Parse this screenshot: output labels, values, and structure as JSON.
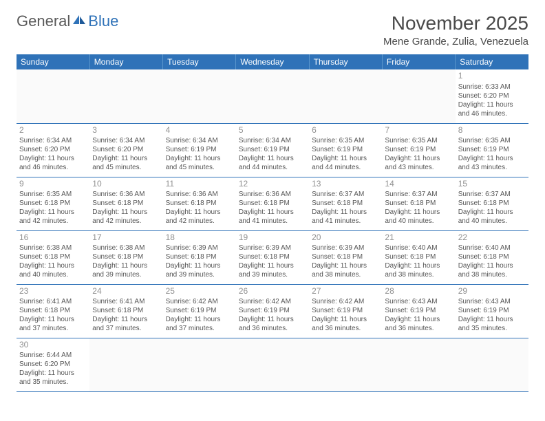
{
  "logo": {
    "general": "General",
    "blue": "Blue"
  },
  "header": {
    "title": "November 2025",
    "location": "Mene Grande, Zulia, Venezuela"
  },
  "columns": [
    "Sunday",
    "Monday",
    "Tuesday",
    "Wednesday",
    "Thursday",
    "Friday",
    "Saturday"
  ],
  "style": {
    "accent_color": "#2f72b8",
    "header_text_color": "#ffffff",
    "cell_border_color": "#2f72b8",
    "cell_top_border": "#cccccc",
    "text_color": "#555555",
    "daynum_color": "#909090",
    "background": "#ffffff",
    "font_family": "Arial"
  },
  "weeks": [
    [
      null,
      null,
      null,
      null,
      null,
      null,
      {
        "n": "1",
        "sunrise": "Sunrise: 6:33 AM",
        "sunset": "Sunset: 6:20 PM",
        "day1": "Daylight: 11 hours",
        "day2": "and 46 minutes."
      }
    ],
    [
      {
        "n": "2",
        "sunrise": "Sunrise: 6:34 AM",
        "sunset": "Sunset: 6:20 PM",
        "day1": "Daylight: 11 hours",
        "day2": "and 46 minutes."
      },
      {
        "n": "3",
        "sunrise": "Sunrise: 6:34 AM",
        "sunset": "Sunset: 6:20 PM",
        "day1": "Daylight: 11 hours",
        "day2": "and 45 minutes."
      },
      {
        "n": "4",
        "sunrise": "Sunrise: 6:34 AM",
        "sunset": "Sunset: 6:19 PM",
        "day1": "Daylight: 11 hours",
        "day2": "and 45 minutes."
      },
      {
        "n": "5",
        "sunrise": "Sunrise: 6:34 AM",
        "sunset": "Sunset: 6:19 PM",
        "day1": "Daylight: 11 hours",
        "day2": "and 44 minutes."
      },
      {
        "n": "6",
        "sunrise": "Sunrise: 6:35 AM",
        "sunset": "Sunset: 6:19 PM",
        "day1": "Daylight: 11 hours",
        "day2": "and 44 minutes."
      },
      {
        "n": "7",
        "sunrise": "Sunrise: 6:35 AM",
        "sunset": "Sunset: 6:19 PM",
        "day1": "Daylight: 11 hours",
        "day2": "and 43 minutes."
      },
      {
        "n": "8",
        "sunrise": "Sunrise: 6:35 AM",
        "sunset": "Sunset: 6:19 PM",
        "day1": "Daylight: 11 hours",
        "day2": "and 43 minutes."
      }
    ],
    [
      {
        "n": "9",
        "sunrise": "Sunrise: 6:35 AM",
        "sunset": "Sunset: 6:18 PM",
        "day1": "Daylight: 11 hours",
        "day2": "and 42 minutes."
      },
      {
        "n": "10",
        "sunrise": "Sunrise: 6:36 AM",
        "sunset": "Sunset: 6:18 PM",
        "day1": "Daylight: 11 hours",
        "day2": "and 42 minutes."
      },
      {
        "n": "11",
        "sunrise": "Sunrise: 6:36 AM",
        "sunset": "Sunset: 6:18 PM",
        "day1": "Daylight: 11 hours",
        "day2": "and 42 minutes."
      },
      {
        "n": "12",
        "sunrise": "Sunrise: 6:36 AM",
        "sunset": "Sunset: 6:18 PM",
        "day1": "Daylight: 11 hours",
        "day2": "and 41 minutes."
      },
      {
        "n": "13",
        "sunrise": "Sunrise: 6:37 AM",
        "sunset": "Sunset: 6:18 PM",
        "day1": "Daylight: 11 hours",
        "day2": "and 41 minutes."
      },
      {
        "n": "14",
        "sunrise": "Sunrise: 6:37 AM",
        "sunset": "Sunset: 6:18 PM",
        "day1": "Daylight: 11 hours",
        "day2": "and 40 minutes."
      },
      {
        "n": "15",
        "sunrise": "Sunrise: 6:37 AM",
        "sunset": "Sunset: 6:18 PM",
        "day1": "Daylight: 11 hours",
        "day2": "and 40 minutes."
      }
    ],
    [
      {
        "n": "16",
        "sunrise": "Sunrise: 6:38 AM",
        "sunset": "Sunset: 6:18 PM",
        "day1": "Daylight: 11 hours",
        "day2": "and 40 minutes."
      },
      {
        "n": "17",
        "sunrise": "Sunrise: 6:38 AM",
        "sunset": "Sunset: 6:18 PM",
        "day1": "Daylight: 11 hours",
        "day2": "and 39 minutes."
      },
      {
        "n": "18",
        "sunrise": "Sunrise: 6:39 AM",
        "sunset": "Sunset: 6:18 PM",
        "day1": "Daylight: 11 hours",
        "day2": "and 39 minutes."
      },
      {
        "n": "19",
        "sunrise": "Sunrise: 6:39 AM",
        "sunset": "Sunset: 6:18 PM",
        "day1": "Daylight: 11 hours",
        "day2": "and 39 minutes."
      },
      {
        "n": "20",
        "sunrise": "Sunrise: 6:39 AM",
        "sunset": "Sunset: 6:18 PM",
        "day1": "Daylight: 11 hours",
        "day2": "and 38 minutes."
      },
      {
        "n": "21",
        "sunrise": "Sunrise: 6:40 AM",
        "sunset": "Sunset: 6:18 PM",
        "day1": "Daylight: 11 hours",
        "day2": "and 38 minutes."
      },
      {
        "n": "22",
        "sunrise": "Sunrise: 6:40 AM",
        "sunset": "Sunset: 6:18 PM",
        "day1": "Daylight: 11 hours",
        "day2": "and 38 minutes."
      }
    ],
    [
      {
        "n": "23",
        "sunrise": "Sunrise: 6:41 AM",
        "sunset": "Sunset: 6:18 PM",
        "day1": "Daylight: 11 hours",
        "day2": "and 37 minutes."
      },
      {
        "n": "24",
        "sunrise": "Sunrise: 6:41 AM",
        "sunset": "Sunset: 6:18 PM",
        "day1": "Daylight: 11 hours",
        "day2": "and 37 minutes."
      },
      {
        "n": "25",
        "sunrise": "Sunrise: 6:42 AM",
        "sunset": "Sunset: 6:19 PM",
        "day1": "Daylight: 11 hours",
        "day2": "and 37 minutes."
      },
      {
        "n": "26",
        "sunrise": "Sunrise: 6:42 AM",
        "sunset": "Sunset: 6:19 PM",
        "day1": "Daylight: 11 hours",
        "day2": "and 36 minutes."
      },
      {
        "n": "27",
        "sunrise": "Sunrise: 6:42 AM",
        "sunset": "Sunset: 6:19 PM",
        "day1": "Daylight: 11 hours",
        "day2": "and 36 minutes."
      },
      {
        "n": "28",
        "sunrise": "Sunrise: 6:43 AM",
        "sunset": "Sunset: 6:19 PM",
        "day1": "Daylight: 11 hours",
        "day2": "and 36 minutes."
      },
      {
        "n": "29",
        "sunrise": "Sunrise: 6:43 AM",
        "sunset": "Sunset: 6:19 PM",
        "day1": "Daylight: 11 hours",
        "day2": "and 35 minutes."
      }
    ],
    [
      {
        "n": "30",
        "sunrise": "Sunrise: 6:44 AM",
        "sunset": "Sunset: 6:20 PM",
        "day1": "Daylight: 11 hours",
        "day2": "and 35 minutes."
      },
      null,
      null,
      null,
      null,
      null,
      null
    ]
  ]
}
